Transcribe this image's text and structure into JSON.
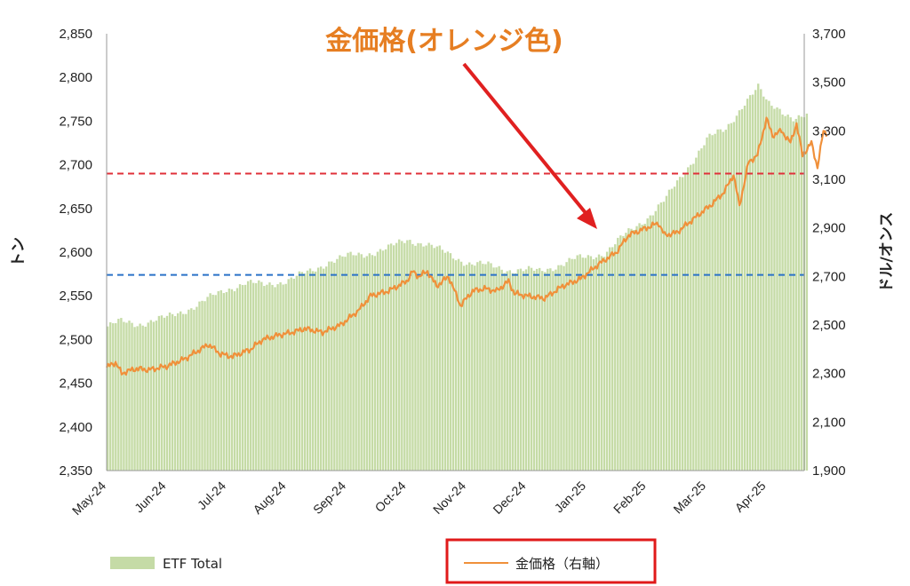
{
  "chart_data": {
    "type": "bar+line",
    "left_axis": {
      "label": "トン",
      "ylim": [
        2350,
        2850
      ],
      "ticks": [
        "2,350",
        "2,400",
        "2,450",
        "2,500",
        "2,550",
        "2,600",
        "2,650",
        "2,700",
        "2,750",
        "2,800",
        "2,850"
      ]
    },
    "right_axis": {
      "label": "ドル/オンス",
      "ylim": [
        1900,
        3700
      ],
      "ticks": [
        "1,900",
        "2,100",
        "2,300",
        "2,500",
        "2,700",
        "2,900",
        "3,100",
        "3,300",
        "3,500",
        "3,700"
      ]
    },
    "x_ticks": [
      "May-24",
      "Jun-24",
      "Jul-24",
      "Aug-24",
      "Sep-24",
      "Oct-24",
      "Nov-24",
      "Dec-24",
      "Jan-25",
      "Feb-25",
      "Mar-25",
      "Apr-25"
    ],
    "annotation": "金価格(オレンジ色)",
    "ref_lines": [
      {
        "axis": "left",
        "value": 2690,
        "color": "#e0303a"
      },
      {
        "axis": "left",
        "value": 2574,
        "color": "#2a72c8"
      }
    ],
    "series": [
      {
        "name": "ETF Total",
        "axis": "left",
        "kind": "bar",
        "color": "#c5dba6",
        "anchors": [
          [
            0,
            2515
          ],
          [
            0.2,
            2520
          ],
          [
            0.5,
            2518
          ],
          [
            1.0,
            2525
          ],
          [
            1.5,
            2540
          ],
          [
            2.0,
            2558
          ],
          [
            2.3,
            2565
          ],
          [
            2.6,
            2562
          ],
          [
            3.0,
            2568
          ],
          [
            3.4,
            2578
          ],
          [
            3.7,
            2590
          ],
          [
            4.0,
            2595
          ],
          [
            4.3,
            2598
          ],
          [
            4.7,
            2605
          ],
          [
            5.0,
            2614
          ],
          [
            5.3,
            2610
          ],
          [
            5.6,
            2600
          ],
          [
            6.0,
            2588
          ],
          [
            6.3,
            2585
          ],
          [
            6.7,
            2580
          ],
          [
            7.0,
            2579
          ],
          [
            7.2,
            2578
          ],
          [
            7.5,
            2585
          ],
          [
            7.8,
            2592
          ],
          [
            8.0,
            2594
          ],
          [
            8.3,
            2600
          ],
          [
            8.6,
            2618
          ],
          [
            9.0,
            2640
          ],
          [
            9.3,
            2660
          ],
          [
            9.6,
            2690
          ],
          [
            10.0,
            2730
          ],
          [
            10.3,
            2740
          ],
          [
            10.6,
            2770
          ],
          [
            10.85,
            2788
          ],
          [
            11.0,
            2770
          ],
          [
            11.2,
            2765
          ],
          [
            11.45,
            2752
          ],
          [
            11.7,
            2755
          ]
        ]
      },
      {
        "name": "金価格（右軸）",
        "axis": "right",
        "kind": "line",
        "color": "#f0903a",
        "anchors": [
          [
            0,
            2325
          ],
          [
            0.1,
            2340
          ],
          [
            0.15,
            2345
          ],
          [
            0.25,
            2300
          ],
          [
            0.35,
            2310
          ],
          [
            0.5,
            2320
          ],
          [
            0.7,
            2315
          ],
          [
            0.9,
            2325
          ],
          [
            1.0,
            2330
          ],
          [
            1.3,
            2360
          ],
          [
            1.5,
            2390
          ],
          [
            1.7,
            2420
          ],
          [
            1.9,
            2380
          ],
          [
            2.1,
            2370
          ],
          [
            2.4,
            2400
          ],
          [
            2.6,
            2440
          ],
          [
            2.9,
            2460
          ],
          [
            3.1,
            2470
          ],
          [
            3.3,
            2485
          ],
          [
            3.6,
            2470
          ],
          [
            3.9,
            2500
          ],
          [
            4.2,
            2560
          ],
          [
            4.4,
            2620
          ],
          [
            4.7,
            2640
          ],
          [
            5.0,
            2680
          ],
          [
            5.1,
            2720
          ],
          [
            5.2,
            2700
          ],
          [
            5.35,
            2720
          ],
          [
            5.5,
            2660
          ],
          [
            5.7,
            2700
          ],
          [
            5.9,
            2580
          ],
          [
            6.1,
            2640
          ],
          [
            6.3,
            2650
          ],
          [
            6.5,
            2640
          ],
          [
            6.7,
            2680
          ],
          [
            6.8,
            2630
          ],
          [
            7.0,
            2620
          ],
          [
            7.3,
            2610
          ],
          [
            7.6,
            2660
          ],
          [
            7.9,
            2690
          ],
          [
            8.2,
            2750
          ],
          [
            8.5,
            2800
          ],
          [
            8.7,
            2870
          ],
          [
            8.9,
            2890
          ],
          [
            9.0,
            2900
          ],
          [
            9.2,
            2920
          ],
          [
            9.3,
            2870
          ],
          [
            9.5,
            2880
          ],
          [
            9.7,
            2920
          ],
          [
            9.9,
            2960
          ],
          [
            10.1,
            3000
          ],
          [
            10.3,
            3050
          ],
          [
            10.45,
            3120
          ],
          [
            10.55,
            2990
          ],
          [
            10.7,
            3170
          ],
          [
            10.85,
            3200
          ],
          [
            11.0,
            3350
          ],
          [
            11.1,
            3280
          ],
          [
            11.25,
            3300
          ],
          [
            11.4,
            3250
          ],
          [
            11.5,
            3330
          ],
          [
            11.6,
            3200
          ],
          [
            11.75,
            3250
          ],
          [
            11.85,
            3150
          ],
          [
            11.95,
            3300
          ],
          [
            12.0,
            3290
          ]
        ]
      }
    ]
  },
  "legend": {
    "etf_label": "ETF Total",
    "gold_label": "金価格（右軸）"
  }
}
